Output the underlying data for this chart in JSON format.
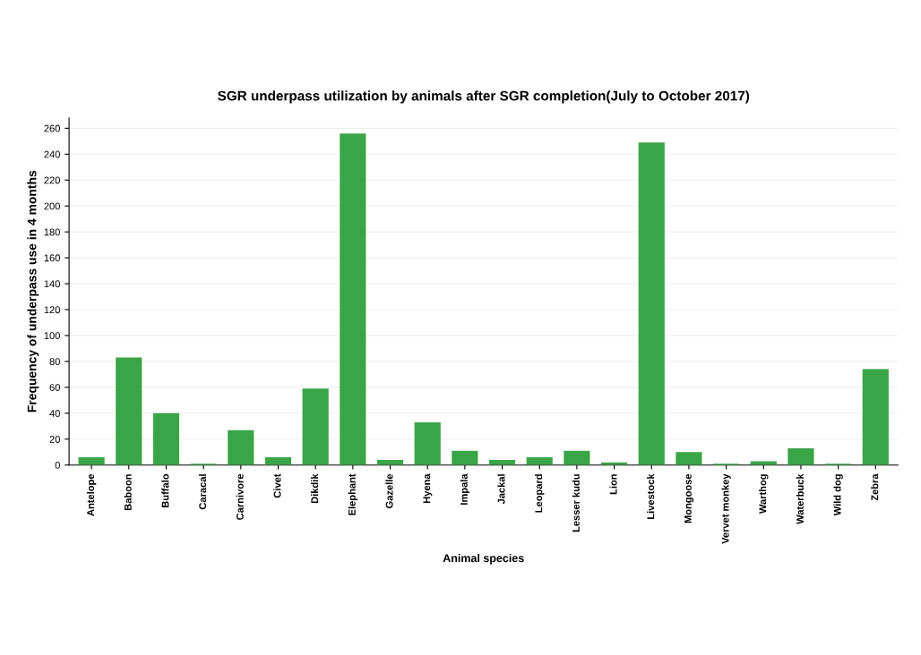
{
  "chart_data": {
    "type": "bar",
    "title": "SGR underpass utilization by animals after SGR completion(July to October 2017)",
    "xlabel": "Animal species",
    "ylabel": "Frequency of underpass use in 4 months",
    "categories": [
      "Antelope",
      "Baboon",
      "Buffalo",
      "Caracal",
      "Carnivore",
      "Civet",
      "Dikdik",
      "Elephant",
      "Gazelle",
      "Hyena",
      "Impala",
      "Jackal",
      "Leopard",
      "Lesser kudu",
      "Lion",
      "Livestock",
      "Mongoose",
      "Vervet monkey",
      "Warthog",
      "Waterbuck",
      "Wild dog",
      "Zebra"
    ],
    "values": [
      6,
      83,
      40,
      1,
      27,
      6,
      59,
      256,
      4,
      33,
      11,
      4,
      6,
      11,
      2,
      249,
      10,
      1,
      3,
      13,
      1,
      74
    ],
    "color": "#3aa546",
    "ylim": [
      0,
      268
    ],
    "yticks": [
      0,
      20,
      40,
      60,
      80,
      100,
      120,
      140,
      160,
      180,
      200,
      220,
      240,
      260
    ],
    "grid": "y"
  }
}
